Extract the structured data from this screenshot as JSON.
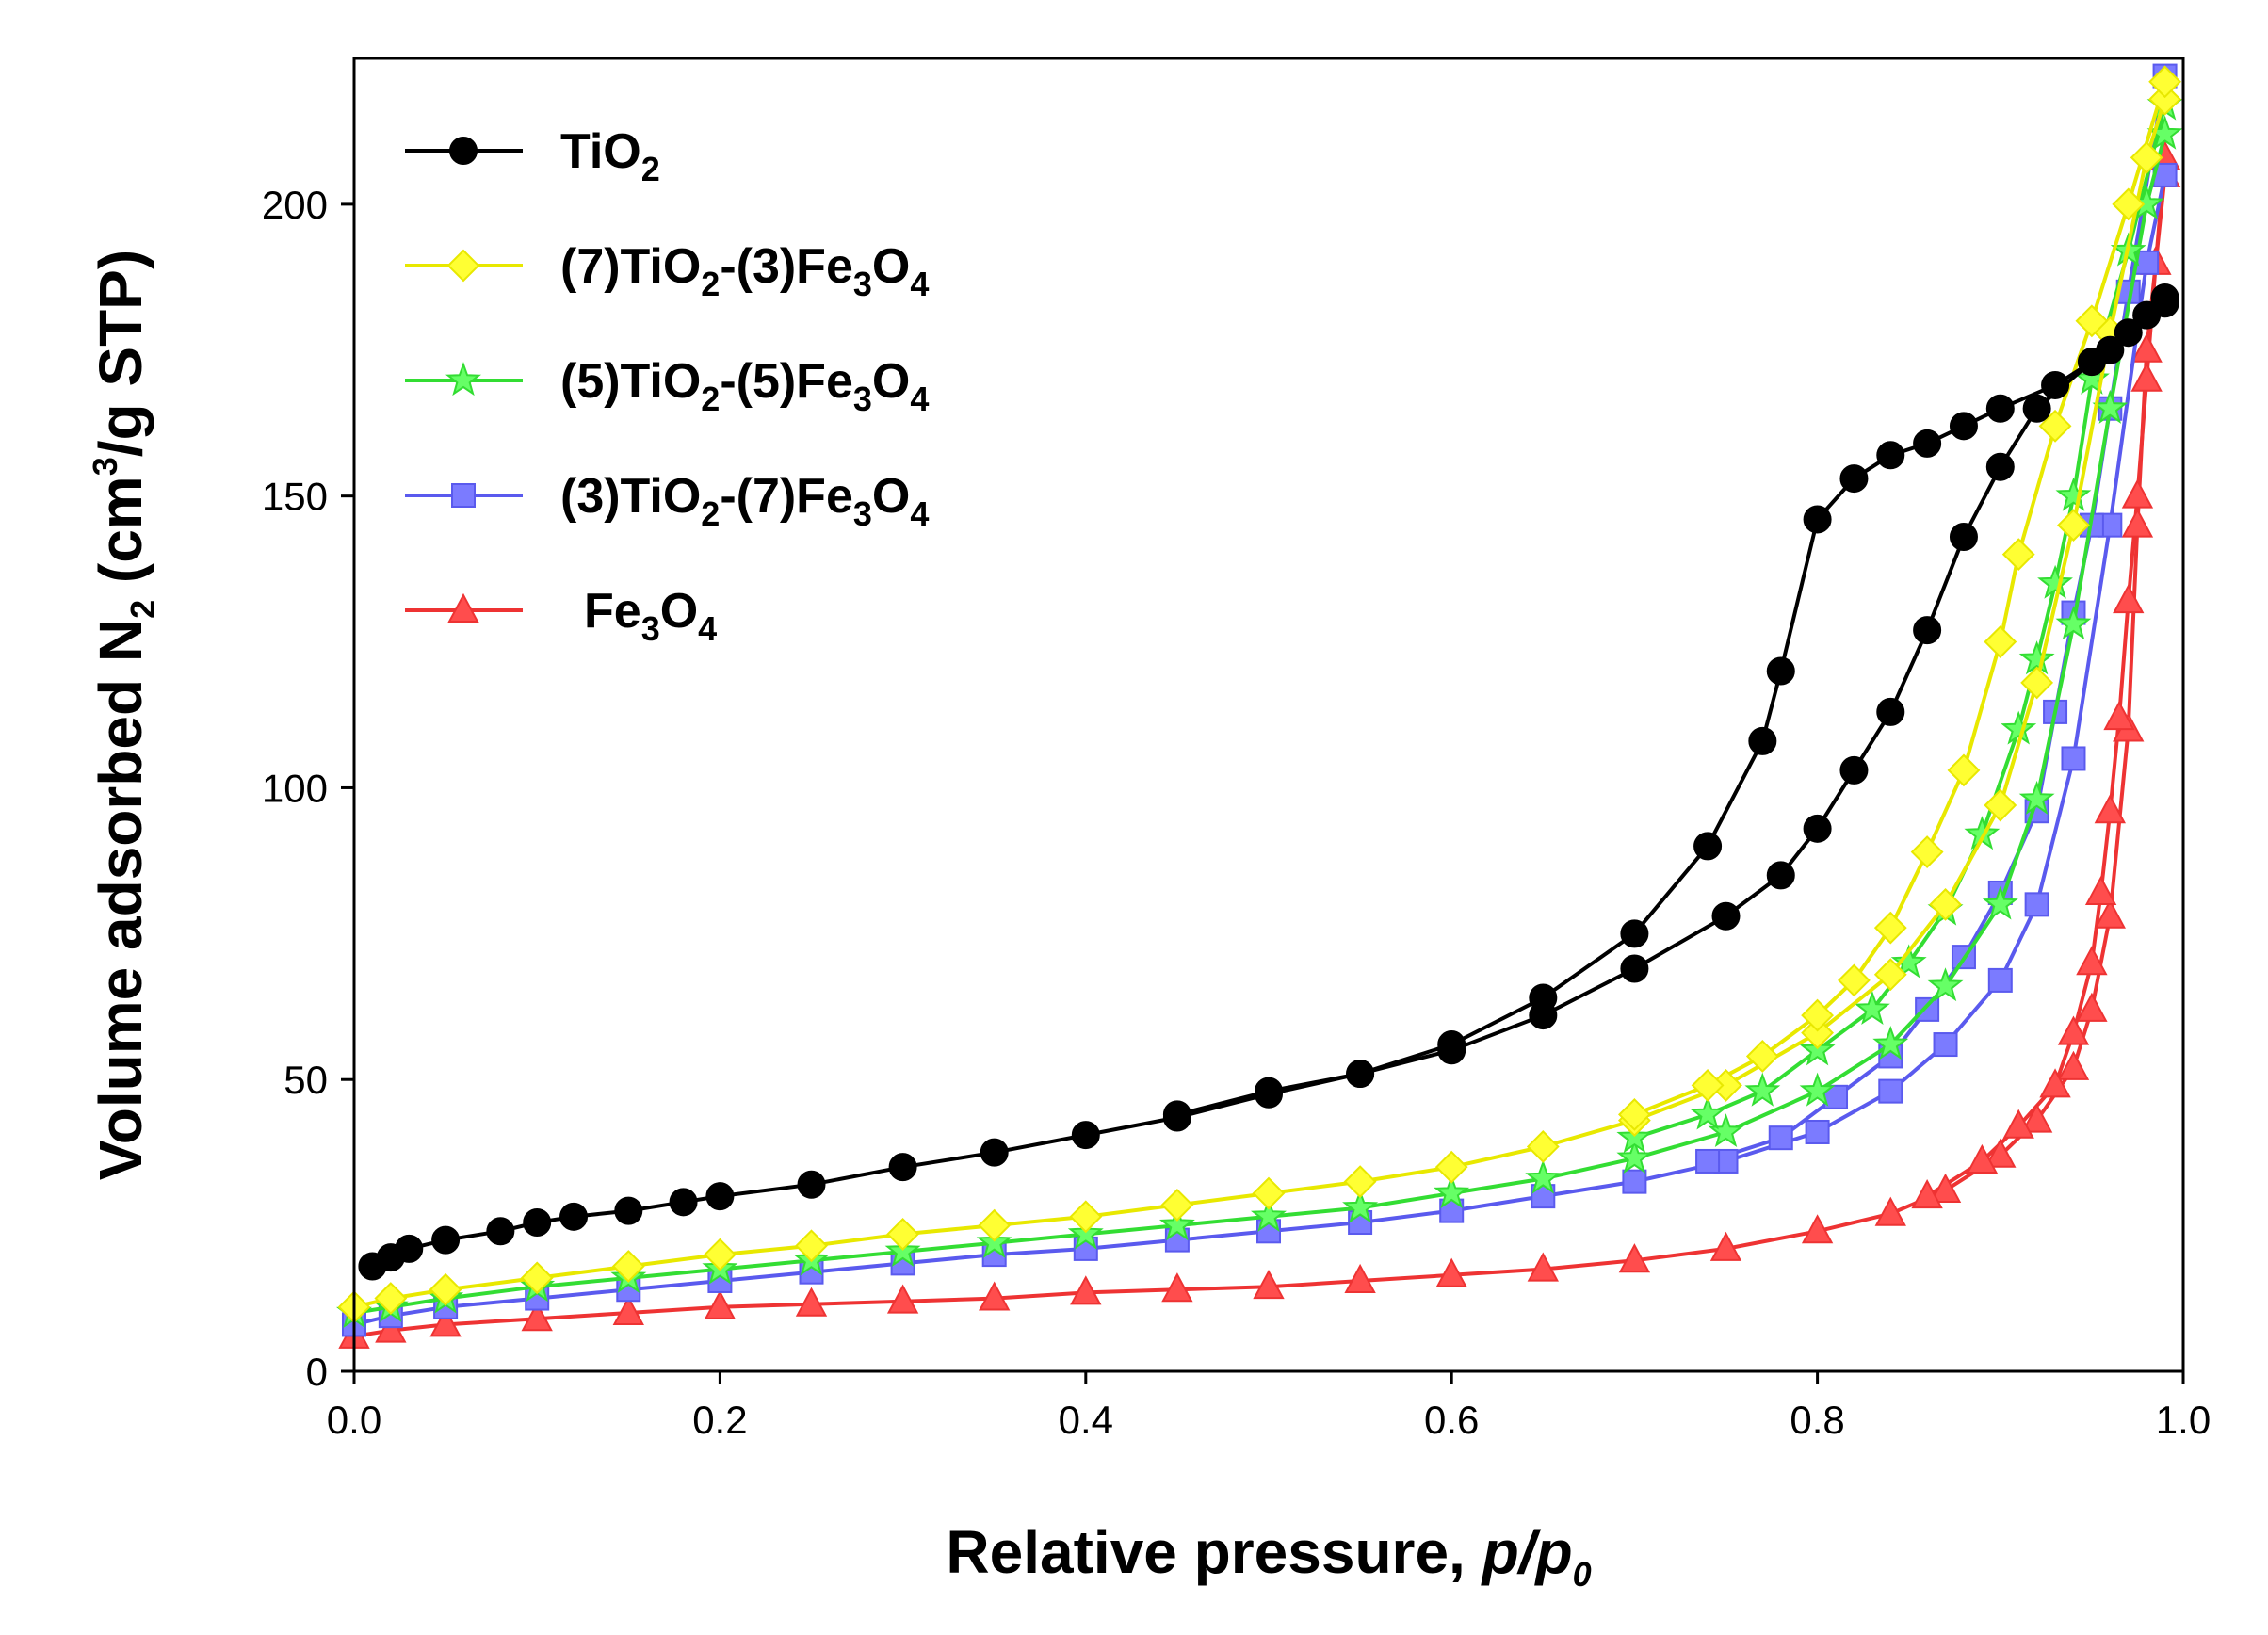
{
  "chart_data": {
    "type": "line",
    "title": "",
    "xlabel": {
      "text": "Relative pressure, ",
      "italic_main": "p/p",
      "italic_sub": "0"
    },
    "ylabel": {
      "part1": "Volume adsorbed N",
      "sub": "2",
      "part2": " (cm",
      "sup": "3",
      "part3": "/g STP)"
    },
    "xlim": [
      0,
      1.0
    ],
    "ylim": [
      0,
      225
    ],
    "x_ticks": [
      0.0,
      0.2,
      0.4,
      0.6,
      0.8,
      1.0
    ],
    "x_tick_labels": [
      "0.0",
      "0.2",
      "0.4",
      "0.6",
      "0.8",
      "1.0"
    ],
    "y_ticks": [
      0,
      50,
      100,
      150,
      200
    ],
    "y_tick_labels": [
      "0",
      "50",
      "100",
      "150",
      "200"
    ],
    "grid": false,
    "legend_position": "top-left",
    "series": [
      {
        "name": "TiO2",
        "legend": [
          {
            "t": "TiO"
          },
          {
            "t": "2",
            "sub": true
          }
        ],
        "color": "#000000",
        "marker": "circle",
        "adsorption": [
          [
            0.01,
            18
          ],
          [
            0.02,
            19.5
          ],
          [
            0.03,
            21
          ],
          [
            0.05,
            22.5
          ],
          [
            0.08,
            24
          ],
          [
            0.1,
            25.5
          ],
          [
            0.12,
            26.5
          ],
          [
            0.15,
            27.5
          ],
          [
            0.18,
            29
          ],
          [
            0.2,
            30
          ],
          [
            0.25,
            32
          ],
          [
            0.3,
            35
          ],
          [
            0.35,
            37.5
          ],
          [
            0.4,
            40.5
          ],
          [
            0.45,
            43.5
          ],
          [
            0.5,
            47.5
          ],
          [
            0.55,
            51
          ],
          [
            0.6,
            55
          ],
          [
            0.65,
            61
          ],
          [
            0.7,
            69
          ],
          [
            0.75,
            78
          ],
          [
            0.78,
            85
          ],
          [
            0.8,
            93
          ],
          [
            0.82,
            103
          ],
          [
            0.84,
            113
          ],
          [
            0.86,
            127
          ],
          [
            0.88,
            143
          ],
          [
            0.9,
            155
          ],
          [
            0.92,
            165
          ],
          [
            0.95,
            173
          ],
          [
            0.97,
            178
          ],
          [
            0.98,
            181
          ],
          [
            0.99,
            183
          ]
        ],
        "desorption": [
          [
            0.99,
            184
          ],
          [
            0.96,
            175
          ],
          [
            0.93,
            169
          ],
          [
            0.9,
            165
          ],
          [
            0.88,
            162
          ],
          [
            0.86,
            159
          ],
          [
            0.84,
            157
          ],
          [
            0.82,
            153
          ],
          [
            0.8,
            146
          ],
          [
            0.78,
            120
          ],
          [
            0.77,
            108
          ],
          [
            0.74,
            90
          ],
          [
            0.7,
            75
          ],
          [
            0.65,
            64
          ],
          [
            0.6,
            56
          ],
          [
            0.55,
            51
          ],
          [
            0.5,
            48
          ],
          [
            0.45,
            44
          ]
        ]
      },
      {
        "name": "(7)TiO2-(3)Fe3O4",
        "legend": [
          {
            "t": "(7)TiO"
          },
          {
            "t": "2",
            "sub": true
          },
          {
            "t": "-(3)Fe"
          },
          {
            "t": "3",
            "sub": true
          },
          {
            "t": "O"
          },
          {
            "t": "4",
            "sub": true
          }
        ],
        "color": "#ffff33",
        "stroke": "#e8e800",
        "marker": "diamond",
        "adsorption": [
          [
            0.0,
            11
          ],
          [
            0.02,
            12.5
          ],
          [
            0.05,
            14
          ],
          [
            0.1,
            16
          ],
          [
            0.15,
            18
          ],
          [
            0.2,
            20
          ],
          [
            0.25,
            21.5
          ],
          [
            0.3,
            23.5
          ],
          [
            0.35,
            25
          ],
          [
            0.4,
            26.5
          ],
          [
            0.45,
            28.5
          ],
          [
            0.5,
            30.5
          ],
          [
            0.55,
            32.5
          ],
          [
            0.6,
            35
          ],
          [
            0.65,
            38.5
          ],
          [
            0.7,
            43
          ],
          [
            0.75,
            49
          ],
          [
            0.8,
            58
          ],
          [
            0.84,
            68
          ],
          [
            0.87,
            80
          ],
          [
            0.9,
            97
          ],
          [
            0.92,
            118
          ],
          [
            0.94,
            145
          ],
          [
            0.96,
            178
          ],
          [
            0.98,
            208
          ],
          [
            0.99,
            218
          ]
        ],
        "desorption": [
          [
            0.99,
            221
          ],
          [
            0.97,
            200
          ],
          [
            0.95,
            180
          ],
          [
            0.93,
            162
          ],
          [
            0.91,
            140
          ],
          [
            0.9,
            125
          ],
          [
            0.88,
            103
          ],
          [
            0.86,
            89
          ],
          [
            0.84,
            76
          ],
          [
            0.82,
            67
          ],
          [
            0.8,
            61
          ],
          [
            0.77,
            54
          ],
          [
            0.74,
            49
          ],
          [
            0.7,
            44
          ]
        ]
      },
      {
        "name": "(5)TiO2-(5)Fe3O4",
        "legend": [
          {
            "t": "(5)TiO"
          },
          {
            "t": "2",
            "sub": true
          },
          {
            "t": "-(5)Fe"
          },
          {
            "t": "3",
            "sub": true
          },
          {
            "t": "O"
          },
          {
            "t": "4",
            "sub": true
          }
        ],
        "color": "#66ff66",
        "stroke": "#33dd33",
        "marker": "star",
        "adsorption": [
          [
            0.0,
            10
          ],
          [
            0.02,
            11
          ],
          [
            0.05,
            12.5
          ],
          [
            0.1,
            14.5
          ],
          [
            0.15,
            16
          ],
          [
            0.2,
            17.5
          ],
          [
            0.25,
            19
          ],
          [
            0.3,
            20.5
          ],
          [
            0.35,
            22
          ],
          [
            0.4,
            23.5
          ],
          [
            0.45,
            25
          ],
          [
            0.5,
            26.5
          ],
          [
            0.55,
            28
          ],
          [
            0.6,
            30.5
          ],
          [
            0.65,
            33
          ],
          [
            0.7,
            36.5
          ],
          [
            0.75,
            41
          ],
          [
            0.8,
            48
          ],
          [
            0.84,
            56
          ],
          [
            0.87,
            66
          ],
          [
            0.9,
            80
          ],
          [
            0.92,
            98
          ],
          [
            0.94,
            128
          ],
          [
            0.96,
            165
          ],
          [
            0.98,
            200
          ],
          [
            0.99,
            212
          ]
        ],
        "desorption": [
          [
            0.99,
            217
          ],
          [
            0.97,
            192
          ],
          [
            0.95,
            170
          ],
          [
            0.94,
            150
          ],
          [
            0.93,
            135
          ],
          [
            0.92,
            122
          ],
          [
            0.91,
            110
          ],
          [
            0.89,
            92
          ],
          [
            0.87,
            79
          ],
          [
            0.85,
            70
          ],
          [
            0.83,
            62
          ],
          [
            0.8,
            55
          ],
          [
            0.77,
            48
          ],
          [
            0.74,
            44
          ],
          [
            0.7,
            40
          ]
        ]
      },
      {
        "name": "(3)TiO2-(7)Fe3O4",
        "legend": [
          {
            "t": "(3)TiO"
          },
          {
            "t": "2",
            "sub": true
          },
          {
            "t": "-(7)Fe"
          },
          {
            "t": "3",
            "sub": true
          },
          {
            "t": "O"
          },
          {
            "t": "4",
            "sub": true
          }
        ],
        "color": "#7b7bff",
        "stroke": "#5a5aee",
        "marker": "square",
        "adsorption": [
          [
            0.0,
            8
          ],
          [
            0.02,
            9.5
          ],
          [
            0.05,
            11
          ],
          [
            0.1,
            12.5
          ],
          [
            0.15,
            14
          ],
          [
            0.2,
            15.5
          ],
          [
            0.25,
            17
          ],
          [
            0.3,
            18.5
          ],
          [
            0.35,
            20
          ],
          [
            0.4,
            21
          ],
          [
            0.45,
            22.5
          ],
          [
            0.5,
            24
          ],
          [
            0.55,
            25.5
          ],
          [
            0.6,
            27.5
          ],
          [
            0.65,
            30
          ],
          [
            0.7,
            32.5
          ],
          [
            0.75,
            36
          ],
          [
            0.8,
            41
          ],
          [
            0.84,
            48
          ],
          [
            0.87,
            56
          ],
          [
            0.9,
            67
          ],
          [
            0.92,
            80
          ],
          [
            0.94,
            105
          ],
          [
            0.96,
            145
          ],
          [
            0.98,
            190
          ],
          [
            0.99,
            205
          ]
        ],
        "desorption": [
          [
            0.99,
            222
          ],
          [
            0.97,
            185
          ],
          [
            0.96,
            165
          ],
          [
            0.95,
            145
          ],
          [
            0.94,
            130
          ],
          [
            0.93,
            113
          ],
          [
            0.92,
            96
          ],
          [
            0.9,
            82
          ],
          [
            0.88,
            71
          ],
          [
            0.86,
            62
          ],
          [
            0.84,
            54
          ],
          [
            0.81,
            47
          ],
          [
            0.78,
            40
          ],
          [
            0.74,
            36
          ]
        ]
      },
      {
        "name": "Fe3O4",
        "legend": [
          {
            "t": "Fe"
          },
          {
            "t": "3",
            "sub": true
          },
          {
            "t": "O"
          },
          {
            "t": "4",
            "sub": true
          }
        ],
        "color": "#ff4d4d",
        "stroke": "#ee3333",
        "marker": "triangle",
        "adsorption": [
          [
            0.0,
            6
          ],
          [
            0.02,
            7
          ],
          [
            0.05,
            8
          ],
          [
            0.1,
            9
          ],
          [
            0.15,
            10
          ],
          [
            0.2,
            11
          ],
          [
            0.25,
            11.5
          ],
          [
            0.3,
            12
          ],
          [
            0.35,
            12.5
          ],
          [
            0.4,
            13.5
          ],
          [
            0.45,
            14
          ],
          [
            0.5,
            14.5
          ],
          [
            0.55,
            15.5
          ],
          [
            0.6,
            16.5
          ],
          [
            0.65,
            17.5
          ],
          [
            0.7,
            19
          ],
          [
            0.75,
            21
          ],
          [
            0.8,
            24
          ],
          [
            0.84,
            27
          ],
          [
            0.87,
            31
          ],
          [
            0.9,
            37
          ],
          [
            0.92,
            43
          ],
          [
            0.94,
            52
          ],
          [
            0.95,
            62
          ],
          [
            0.96,
            78
          ],
          [
            0.97,
            110
          ],
          [
            0.975,
            145
          ],
          [
            0.98,
            175
          ],
          [
            0.99,
            205
          ]
        ],
        "desorption": [
          [
            0.99,
            208
          ],
          [
            0.985,
            190
          ],
          [
            0.98,
            170
          ],
          [
            0.975,
            150
          ],
          [
            0.97,
            132
          ],
          [
            0.965,
            112
          ],
          [
            0.96,
            96
          ],
          [
            0.955,
            82
          ],
          [
            0.95,
            70
          ],
          [
            0.94,
            58
          ],
          [
            0.93,
            49
          ],
          [
            0.91,
            42
          ],
          [
            0.89,
            36
          ],
          [
            0.86,
            30
          ]
        ]
      }
    ]
  }
}
